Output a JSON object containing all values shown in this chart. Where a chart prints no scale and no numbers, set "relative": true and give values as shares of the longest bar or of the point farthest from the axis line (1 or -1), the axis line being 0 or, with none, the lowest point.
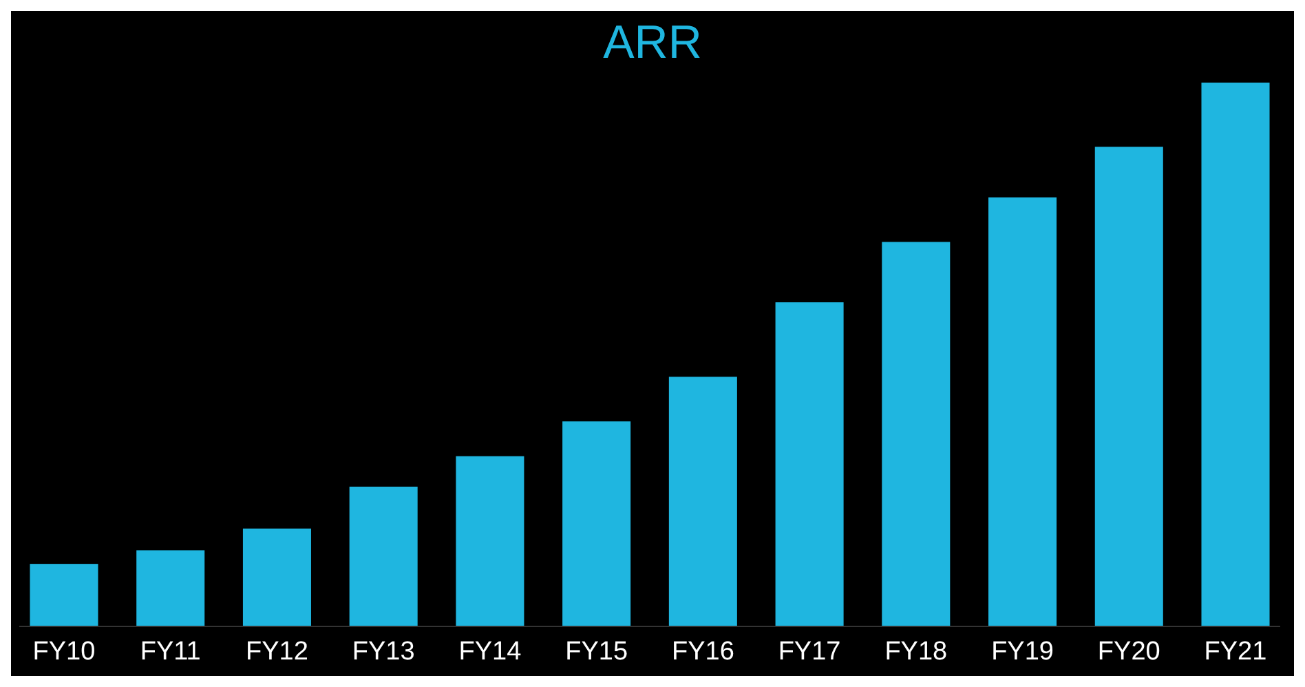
{
  "chart_data": {
    "type": "bar",
    "title": "ARR",
    "relative": true,
    "color": "#1fb6e0",
    "categories": [
      "FY10",
      "FY11",
      "FY12",
      "FY13",
      "FY14",
      "FY15",
      "FY16",
      "FY17",
      "FY18",
      "FY19",
      "FY20",
      "FY21"
    ],
    "values": [
      0.115,
      0.14,
      0.18,
      0.257,
      0.313,
      0.377,
      0.459,
      0.596,
      0.707,
      0.789,
      0.882,
      1
    ]
  }
}
